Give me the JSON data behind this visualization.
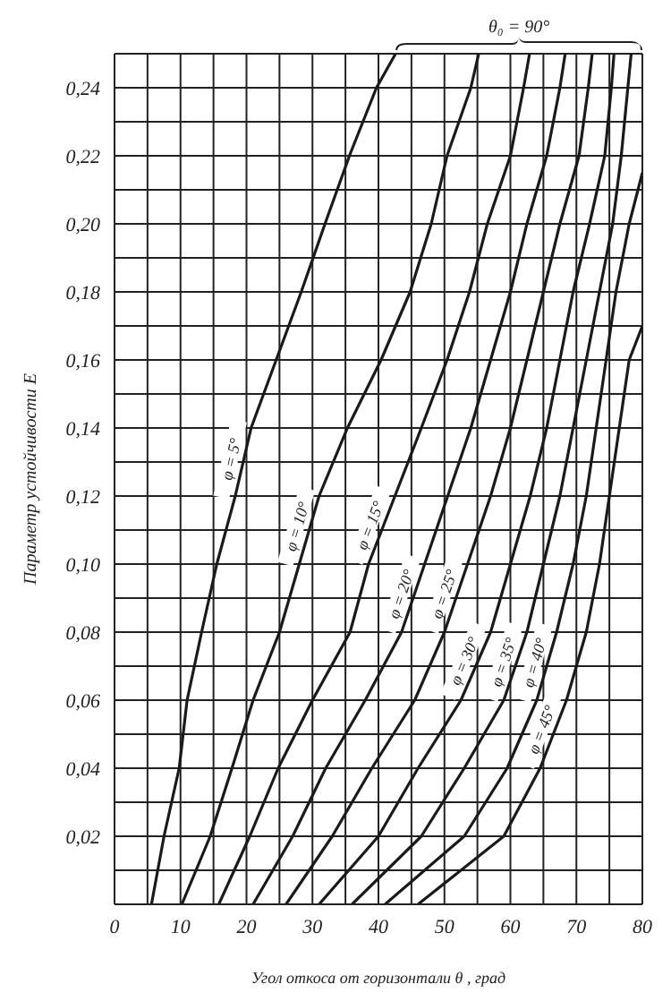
{
  "chart_data": {
    "type": "line",
    "xlabel": "Угол откоса от горизонтали θ , град",
    "ylabel": "Параметр устойчивости E",
    "annotations": [
      "θ₀ = 90°"
    ],
    "xlim": [
      0,
      80
    ],
    "ylim": [
      0,
      0.25
    ],
    "xticks": [
      0,
      {
        "value": 5,
        "label": null
      },
      10,
      {
        "value": 15,
        "label": null
      },
      20,
      {
        "value": 25,
        "label": null
      },
      30,
      {
        "value": 35,
        "label": null
      },
      40,
      {
        "value": 45,
        "label": null
      },
      50,
      {
        "value": 55,
        "label": null
      },
      60,
      {
        "value": 65,
        "label": null
      },
      70,
      {
        "value": 75,
        "label": null
      },
      80
    ],
    "yticks": [
      {
        "value": 0,
        "label": null
      },
      {
        "value": 0.01,
        "label": null
      },
      {
        "value": 0.02,
        "label": "0,02"
      },
      {
        "value": 0.03,
        "label": null
      },
      {
        "value": 0.04,
        "label": "0,04"
      },
      {
        "value": 0.05,
        "label": null
      },
      {
        "value": 0.06,
        "label": "0,06"
      },
      {
        "value": 0.07,
        "label": null
      },
      {
        "value": 0.08,
        "label": "0,08"
      },
      {
        "value": 0.09,
        "label": null
      },
      {
        "value": 0.1,
        "label": "0,10"
      },
      {
        "value": 0.11,
        "label": null
      },
      {
        "value": 0.12,
        "label": "0,12"
      },
      {
        "value": 0.13,
        "label": null
      },
      {
        "value": 0.14,
        "label": "0,14"
      },
      {
        "value": 0.15,
        "label": null
      },
      {
        "value": 0.16,
        "label": "0,16"
      },
      {
        "value": 0.17,
        "label": null
      },
      {
        "value": 0.18,
        "label": "0,18"
      },
      {
        "value": 0.19,
        "label": null
      },
      {
        "value": 0.2,
        "label": "0,20"
      },
      {
        "value": 0.21,
        "label": null
      },
      {
        "value": 0.22,
        "label": "0,22"
      },
      {
        "value": 0.23,
        "label": null
      },
      {
        "value": 0.24,
        "label": "0,24"
      },
      {
        "value": 0.25,
        "label": null
      }
    ],
    "grid": true,
    "marker": "none",
    "line_style": "solid",
    "series": [
      {
        "name": "φ = 5°",
        "color": "#1a1a1a",
        "x": [
          5.6,
          7.5,
          9.8,
          11,
          13.2,
          15.5,
          18.3,
          20.7,
          24.5,
          28.3,
          31.9,
          35.6,
          39.7,
          42.6
        ],
        "values": [
          0,
          0.02,
          0.04,
          0.06,
          0.08,
          0.1,
          0.12,
          0.14,
          0.16,
          0.18,
          0.2,
          0.22,
          0.24,
          0.25
        ]
      },
      {
        "name": "φ = 10°",
        "color": "#1a1a1a",
        "x": [
          10.2,
          14.5,
          17.8,
          21,
          25,
          28,
          31,
          35.3,
          40.4,
          44.8,
          48,
          50.4,
          54,
          55.2
        ],
        "values": [
          0,
          0.02,
          0.04,
          0.06,
          0.08,
          0.1,
          0.12,
          0.14,
          0.16,
          0.18,
          0.2,
          0.22,
          0.24,
          0.25
        ]
      },
      {
        "name": "φ = 15°",
        "color": "#1a1a1a",
        "x": [
          15.8,
          20.5,
          24.8,
          30,
          35.7,
          38.5,
          42.5,
          46.5,
          50.4,
          53.8,
          56.5,
          60,
          62,
          62.9
        ],
        "values": [
          0,
          0.02,
          0.04,
          0.06,
          0.08,
          0.1,
          0.12,
          0.14,
          0.16,
          0.18,
          0.2,
          0.22,
          0.24,
          0.25
        ]
      },
      {
        "name": "φ = 20°",
        "color": "#1a1a1a",
        "x": [
          21,
          27,
          32,
          38,
          43.5,
          47,
          50.5,
          54,
          57,
          60,
          62.5,
          65.5,
          67.5,
          68.3
        ],
        "values": [
          0,
          0.02,
          0.04,
          0.06,
          0.08,
          0.1,
          0.12,
          0.14,
          0.16,
          0.18,
          0.2,
          0.22,
          0.24,
          0.25
        ]
      },
      {
        "name": "φ = 25°",
        "color": "#1a1a1a",
        "x": [
          26,
          33,
          39,
          45.5,
          50,
          53.5,
          57,
          60,
          62.5,
          65,
          67.5,
          70.4,
          71.8,
          72.4
        ],
        "values": [
          0,
          0.02,
          0.04,
          0.06,
          0.08,
          0.1,
          0.12,
          0.14,
          0.16,
          0.18,
          0.2,
          0.22,
          0.24,
          0.25
        ]
      },
      {
        "name": "φ = 30°",
        "color": "#1a1a1a",
        "x": [
          31,
          40,
          46,
          52.5,
          57,
          60,
          63,
          65.5,
          67.5,
          69.5,
          72,
          74.3,
          75.3,
          75.7
        ],
        "values": [
          0,
          0.02,
          0.04,
          0.06,
          0.08,
          0.1,
          0.12,
          0.14,
          0.16,
          0.18,
          0.2,
          0.22,
          0.24,
          0.25
        ]
      },
      {
        "name": "φ = 35°",
        "color": "#1a1a1a",
        "x": [
          36,
          46.5,
          53,
          59,
          62.5,
          65,
          67.5,
          69.5,
          71.5,
          73.5,
          75.5,
          76.8,
          77.8,
          78.3
        ],
        "values": [
          0,
          0.02,
          0.04,
          0.06,
          0.08,
          0.1,
          0.12,
          0.14,
          0.16,
          0.18,
          0.2,
          0.22,
          0.24,
          0.25
        ]
      },
      {
        "name": "φ = 40°",
        "color": "#1a1a1a",
        "x": [
          41,
          53,
          59.5,
          64,
          67,
          69.5,
          71.5,
          73,
          74.5,
          76,
          78,
          80
        ],
        "values": [
          0,
          0.02,
          0.04,
          0.06,
          0.08,
          0.1,
          0.12,
          0.14,
          0.16,
          0.18,
          0.2,
          0.215
        ]
      },
      {
        "name": "φ = 45°",
        "color": "#1a1a1a",
        "x": [
          46,
          59,
          64.5,
          68.5,
          71.5,
          73.5,
          75,
          76.5,
          78,
          80
        ],
        "values": [
          0,
          0.02,
          0.04,
          0.06,
          0.08,
          0.1,
          0.12,
          0.14,
          0.16,
          0.17
        ]
      }
    ]
  }
}
